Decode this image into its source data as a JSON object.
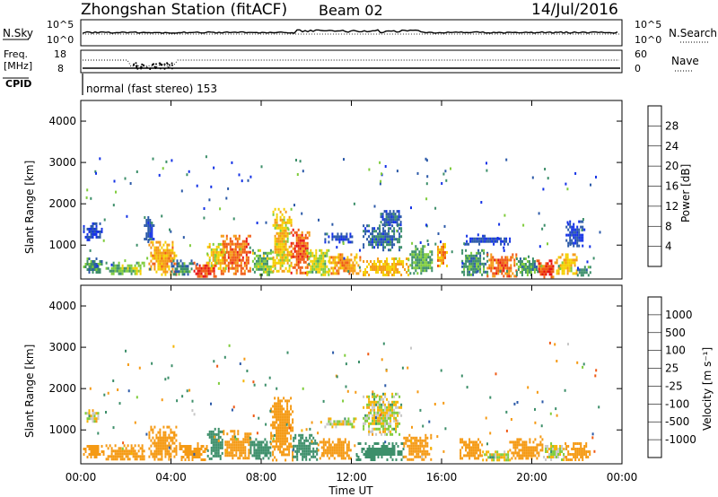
{
  "header": {
    "title": "Zhongshan Station (fitACF)",
    "beam": "Beam 02",
    "date": "14/Jul/2016"
  },
  "panels": {
    "nsky_label": "N.Sky",
    "nsearch_label": "N.Search",
    "freq_label_1": "Freq.",
    "freq_label_2": "[MHz]",
    "nave_label": "Nave",
    "cpid_label": "CPID",
    "cpid_text": "normal (fast stereo) 153",
    "nsky_ticks": [
      "10^5",
      "10^0"
    ],
    "nsearch_ticks": [
      "10^5",
      "10^0"
    ],
    "freq_ticks": [
      "18",
      "8"
    ],
    "nave_ticks": [
      "60",
      "0"
    ]
  },
  "colors": {
    "power": [
      "#1432e6",
      "#2c5aa8",
      "#3d8f6a",
      "#7fcc3c",
      "#f5d000",
      "#f59a14",
      "#f05a14",
      "#e61414"
    ],
    "velocity": [
      "#e61414",
      "#f05a14",
      "#f59a14",
      "#f5b400",
      "#c8c8c8",
      "#7fcc3c",
      "#3d8f6a",
      "#2c5aa8",
      "#1432e6"
    ]
  },
  "chart_data": [
    {
      "type": "heatmap",
      "name": "power",
      "ylabel": "Slant Range [km]",
      "yticks": [
        "1000",
        "2000",
        "3000",
        "4000"
      ],
      "ylim": [
        180,
        4500
      ],
      "colorbar_label": "Power [dB]",
      "colorbar_ticks": [
        "4",
        "8",
        "12",
        "16",
        "20",
        "24",
        "28"
      ],
      "clim": [
        0,
        32
      ],
      "xlim": [
        0,
        24
      ],
      "blobs": [
        {
          "t": [
            0.1,
            1.0
          ],
          "r": [
            350,
            700
          ],
          "v": 10
        },
        {
          "t": [
            0.1,
            0.9
          ],
          "r": [
            1150,
            1550
          ],
          "v": 4
        },
        {
          "t": [
            1.1,
            2.8
          ],
          "r": [
            300,
            600
          ],
          "v": 14
        },
        {
          "t": [
            2.8,
            3.2
          ],
          "r": [
            1100,
            1700
          ],
          "v": 5
        },
        {
          "t": [
            3.0,
            4.2
          ],
          "r": [
            300,
            1100
          ],
          "v": 21
        },
        {
          "t": [
            4.0,
            5.0
          ],
          "r": [
            300,
            650
          ],
          "v": 9
        },
        {
          "t": [
            5.0,
            6.0
          ],
          "r": [
            250,
            600
          ],
          "v": 27
        },
        {
          "t": [
            5.6,
            6.4
          ],
          "r": [
            400,
            1050
          ],
          "v": 17
        },
        {
          "t": [
            6.2,
            7.5
          ],
          "r": [
            300,
            1250
          ],
          "v": 25
        },
        {
          "t": [
            7.6,
            8.5
          ],
          "r": [
            300,
            900
          ],
          "v": 13
        },
        {
          "t": [
            8.5,
            9.3
          ],
          "r": [
            350,
            1900
          ],
          "v": 19
        },
        {
          "t": [
            9.3,
            10.1
          ],
          "r": [
            350,
            1400
          ],
          "v": 26
        },
        {
          "t": [
            10.0,
            11.0
          ],
          "r": [
            300,
            900
          ],
          "v": 15
        },
        {
          "t": [
            10.8,
            12.0
          ],
          "r": [
            1100,
            1300
          ],
          "v": 5
        },
        {
          "t": [
            11.0,
            12.4
          ],
          "r": [
            300,
            800
          ],
          "v": 22
        },
        {
          "t": [
            12.5,
            14.2
          ],
          "r": [
            900,
            1500
          ],
          "v": 7
        },
        {
          "t": [
            12.5,
            14.5
          ],
          "r": [
            300,
            700
          ],
          "v": 20
        },
        {
          "t": [
            13.2,
            14.2
          ],
          "r": [
            1500,
            1850
          ],
          "v": 6
        },
        {
          "t": [
            14.5,
            15.6
          ],
          "r": [
            300,
            1000
          ],
          "v": 12
        },
        {
          "t": [
            15.8,
            16.2
          ],
          "r": [
            500,
            1050
          ],
          "v": 22
        },
        {
          "t": [
            16.8,
            18.0
          ],
          "r": [
            300,
            900
          ],
          "v": 10
        },
        {
          "t": [
            17.0,
            19.0
          ],
          "r": [
            1050,
            1250
          ],
          "v": 4
        },
        {
          "t": [
            18.0,
            19.3
          ],
          "r": [
            250,
            800
          ],
          "v": 25
        },
        {
          "t": [
            19.3,
            20.2
          ],
          "r": [
            300,
            700
          ],
          "v": 11
        },
        {
          "t": [
            20.2,
            21.0
          ],
          "r": [
            250,
            650
          ],
          "v": 27
        },
        {
          "t": [
            21.0,
            22.0
          ],
          "r": [
            300,
            800
          ],
          "v": 19
        },
        {
          "t": [
            21.5,
            22.3
          ],
          "r": [
            1000,
            1600
          ],
          "v": 4
        },
        {
          "t": [
            22.0,
            22.6
          ],
          "r": [
            300,
            500
          ],
          "v": 9
        }
      ]
    },
    {
      "type": "heatmap",
      "name": "velocity",
      "ylabel": "Slant Range [km]",
      "yticks": [
        "1000",
        "2000",
        "3000",
        "4000"
      ],
      "ylim": [
        180,
        4500
      ],
      "xlabel": "Time UT",
      "xticks": [
        "00:00",
        "04:00",
        "08:00",
        "12:00",
        "16:00",
        "20:00",
        "00:00"
      ],
      "colorbar_label": "Velocity [m s⁻¹]",
      "colorbar_ticks": [
        "-1000",
        "-500",
        "-100",
        "-25",
        "25",
        "100",
        "500",
        "1000"
      ],
      "clim": [
        -1200,
        1200
      ],
      "xlim": [
        0,
        24
      ],
      "blobs": [
        {
          "t": [
            0.1,
            1.0
          ],
          "r": [
            350,
            700
          ],
          "v": -350
        },
        {
          "t": [
            0.1,
            0.8
          ],
          "r": [
            1200,
            1500
          ],
          "v": 0
        },
        {
          "t": [
            1.1,
            2.8
          ],
          "r": [
            300,
            650
          ],
          "v": -350
        },
        {
          "t": [
            3.0,
            4.2
          ],
          "r": [
            300,
            1100
          ],
          "v": -350
        },
        {
          "t": [
            4.2,
            5.6
          ],
          "r": [
            300,
            700
          ],
          "v": -350
        },
        {
          "t": [
            5.6,
            6.3
          ],
          "r": [
            300,
            1050
          ],
          "v": 300
        },
        {
          "t": [
            6.3,
            7.5
          ],
          "r": [
            300,
            1000
          ],
          "v": -350
        },
        {
          "t": [
            7.5,
            8.4
          ],
          "r": [
            300,
            800
          ],
          "v": 300
        },
        {
          "t": [
            8.4,
            9.4
          ],
          "r": [
            300,
            1800
          ],
          "v": -350
        },
        {
          "t": [
            9.4,
            10.5
          ],
          "r": [
            300,
            900
          ],
          "v": 300
        },
        {
          "t": [
            10.5,
            12.0
          ],
          "r": [
            300,
            800
          ],
          "v": -350
        },
        {
          "t": [
            10.8,
            12.2
          ],
          "r": [
            1100,
            1300
          ],
          "v": 0
        },
        {
          "t": [
            12.2,
            14.3
          ],
          "r": [
            300,
            700
          ],
          "v": 300
        },
        {
          "t": [
            12.5,
            14.2
          ],
          "r": [
            900,
            1900
          ],
          "v": 0
        },
        {
          "t": [
            14.3,
            15.5
          ],
          "r": [
            300,
            900
          ],
          "v": -350
        },
        {
          "t": [
            16.8,
            17.8
          ],
          "r": [
            300,
            800
          ],
          "v": -350
        },
        {
          "t": [
            17.8,
            19.0
          ],
          "r": [
            250,
            500
          ],
          "v": 0
        },
        {
          "t": [
            19.0,
            20.5
          ],
          "r": [
            300,
            800
          ],
          "v": -350
        },
        {
          "t": [
            20.5,
            21.5
          ],
          "r": [
            300,
            700
          ],
          "v": 0
        },
        {
          "t": [
            21.5,
            22.6
          ],
          "r": [
            300,
            700
          ],
          "v": -350
        }
      ]
    }
  ]
}
